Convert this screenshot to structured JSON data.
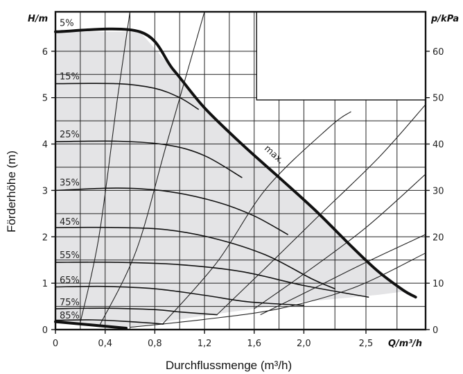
{
  "chart_data": {
    "type": "line",
    "xlabel": "Durchflussmenge (m³/h)",
    "ylabel": "Förderhöhe (m)",
    "x_unit_label": "Q/m³/h",
    "y_unit_label": "H/m",
    "y2_unit_label": "p/kPa",
    "xlim": [
      0,
      2.98
    ],
    "ylim": [
      0,
      6.85
    ],
    "y2lim": [
      0,
      68.5
    ],
    "grid": true,
    "x_ticks": [
      {
        "v": 0,
        "label": "0"
      },
      {
        "v": 0.4,
        "label": "0,4"
      },
      {
        "v": 0.8,
        "label": "0,8"
      },
      {
        "v": 1.2,
        "label": "1,2"
      },
      {
        "v": 1.6,
        "label": "1,6"
      },
      {
        "v": 2.0,
        "label": "2,0"
      },
      {
        "v": 2.5,
        "label": "2,5"
      }
    ],
    "y_ticks": [
      {
        "v": 0,
        "label": "0"
      },
      {
        "v": 1,
        "label": "1"
      },
      {
        "v": 2,
        "label": "2"
      },
      {
        "v": 3,
        "label": "3"
      },
      {
        "v": 4,
        "label": "4"
      },
      {
        "v": 5,
        "label": "5"
      },
      {
        "v": 6,
        "label": "6"
      }
    ],
    "y2_ticks": [
      {
        "v": 0,
        "label": "0"
      },
      {
        "v": 10,
        "label": "10"
      },
      {
        "v": 20,
        "label": "20"
      },
      {
        "v": 30,
        "label": "30"
      },
      {
        "v": 40,
        "label": "40"
      },
      {
        "v": 50,
        "label": "50"
      },
      {
        "v": 60,
        "label": "60"
      }
    ],
    "series": [
      {
        "name": "5%",
        "x": [
          0,
          0.57
        ],
        "y": [
          0.17,
          0.03
        ],
        "bold": true
      },
      {
        "name": "15%",
        "x": [
          0,
          0.5,
          0.8,
          1.0,
          1.15
        ],
        "y": [
          5.3,
          5.3,
          5.2,
          5.0,
          4.75
        ]
      },
      {
        "name": "25%",
        "x": [
          0,
          0.5,
          0.9,
          1.2,
          1.5
        ],
        "y": [
          4.05,
          4.06,
          3.98,
          3.75,
          3.28
        ]
      },
      {
        "name": "35%",
        "x": [
          0,
          0.5,
          0.9,
          1.3,
          1.6,
          1.87
        ],
        "y": [
          3.0,
          3.05,
          2.98,
          2.75,
          2.45,
          2.05
        ]
      },
      {
        "name": "45%",
        "x": [
          0,
          0.5,
          0.9,
          1.3,
          1.7,
          2.06,
          2.25
        ],
        "y": [
          2.2,
          2.2,
          2.15,
          1.95,
          1.6,
          1.1,
          0.88
        ]
      },
      {
        "name": "55%",
        "x": [
          0,
          0.5,
          1.0,
          1.5,
          2.0,
          2.52
        ],
        "y": [
          1.45,
          1.45,
          1.4,
          1.25,
          0.95,
          0.7
        ]
      },
      {
        "name": "65%",
        "x": [
          0,
          0.4,
          0.8,
          1.2,
          1.55,
          2.0
        ],
        "y": [
          0.92,
          0.93,
          0.88,
          0.74,
          0.6,
          0.52
        ]
      },
      {
        "name": "75%",
        "x": [
          0,
          0.4,
          0.8,
          1.0,
          1.3
        ],
        "y": [
          0.45,
          0.46,
          0.43,
          0.38,
          0.32
        ]
      },
      {
        "name": "85%",
        "x": [
          0,
          0.3,
          0.6,
          0.87
        ],
        "y": [
          0.2,
          0.21,
          0.17,
          0.12
        ]
      },
      {
        "name": "max.",
        "x": [
          0,
          0.68,
          0.95,
          1.2,
          1.5,
          1.8,
          2.1,
          2.4,
          2.6,
          2.8,
          2.9
        ],
        "y": [
          6.42,
          6.42,
          5.6,
          4.78,
          4.0,
          3.28,
          2.55,
          1.75,
          1.25,
          0.85,
          0.7
        ],
        "bold": true
      }
    ],
    "system_curves": [
      {
        "x": [
          0.2,
          0.35,
          0.5,
          0.6
        ],
        "y": [
          0.15,
          2.0,
          5.0,
          6.85
        ]
      },
      {
        "x": [
          0.36,
          0.65,
          0.9,
          1.2
        ],
        "y": [
          0.11,
          1.7,
          4.05,
          6.85
        ]
      },
      {
        "x": [
          0.86,
          1.3,
          1.7,
          2.2,
          2.38
        ],
        "y": [
          0.11,
          1.45,
          3.05,
          4.35,
          4.7
        ]
      },
      {
        "x": [
          1.3,
          1.7,
          2.1,
          2.6,
          2.98
        ],
        "y": [
          0.32,
          1.35,
          2.4,
          3.7,
          4.85
        ]
      },
      {
        "x": [
          1.6,
          2.0,
          2.5,
          2.98
        ],
        "y": [
          0.45,
          1.2,
          2.2,
          3.35
        ]
      },
      {
        "x": [
          1.65,
          2.0,
          2.5,
          2.98
        ],
        "y": [
          0.32,
          0.78,
          1.45,
          2.05
        ]
      },
      {
        "x": [
          0.6,
          1.2,
          1.8,
          2.4,
          2.98
        ],
        "y": [
          0.05,
          0.22,
          0.45,
          0.9,
          1.65
        ]
      }
    ],
    "region_lower_bound": {
      "x": [
        0.57,
        1.2,
        2.0,
        2.6,
        2.8
      ],
      "y": [
        0.05,
        0.3,
        0.6,
        0.75,
        0.82
      ]
    },
    "annotations": [
      {
        "text": "max.",
        "x": 1.6,
        "y": 3.8
      }
    ]
  }
}
